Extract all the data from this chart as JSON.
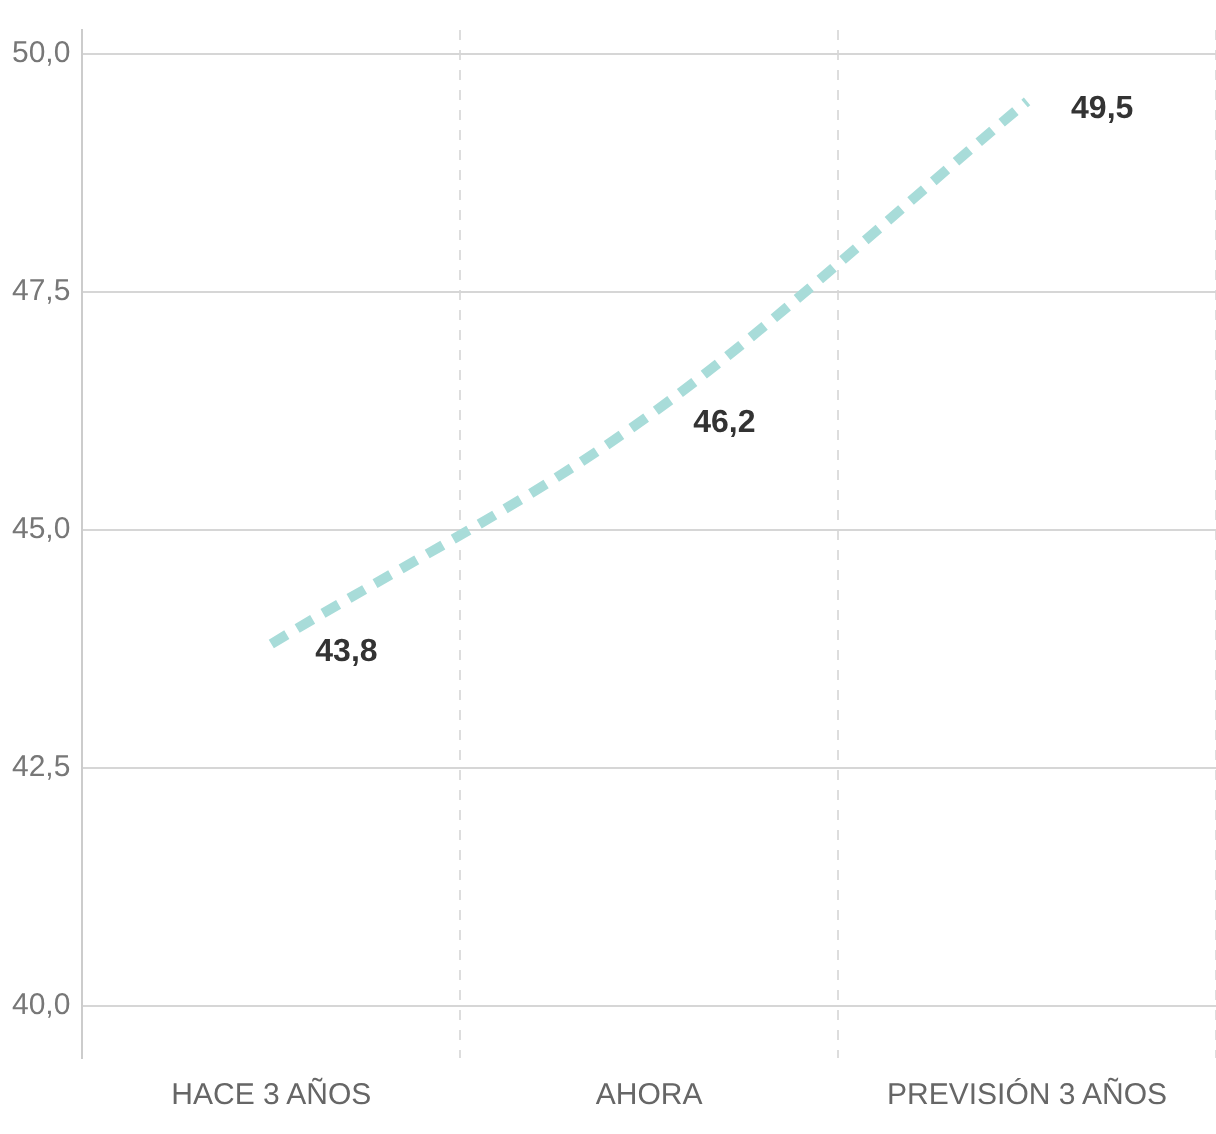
{
  "chart_data": {
    "type": "line",
    "categories": [
      "HACE 3 AÑOS",
      "AHORA",
      "PREVISIÓN 3 AÑOS"
    ],
    "values": [
      43.8,
      46.2,
      49.5
    ],
    "value_labels": [
      "43,8",
      "46,2",
      "49,5"
    ],
    "color": "#a8dcd9",
    "line_style": "dashed",
    "marker": "none",
    "grid": true,
    "legend": false,
    "ylim": [
      39.45,
      50.25
    ],
    "yticks": [
      {
        "value": 40,
        "label": "40,0"
      },
      {
        "value": 42.5,
        "label": "42,5"
      },
      {
        "value": 45,
        "label": "45,0"
      },
      {
        "value": 47.5,
        "label": "47,5"
      },
      {
        "value": 50,
        "label": "50,0"
      }
    ]
  }
}
